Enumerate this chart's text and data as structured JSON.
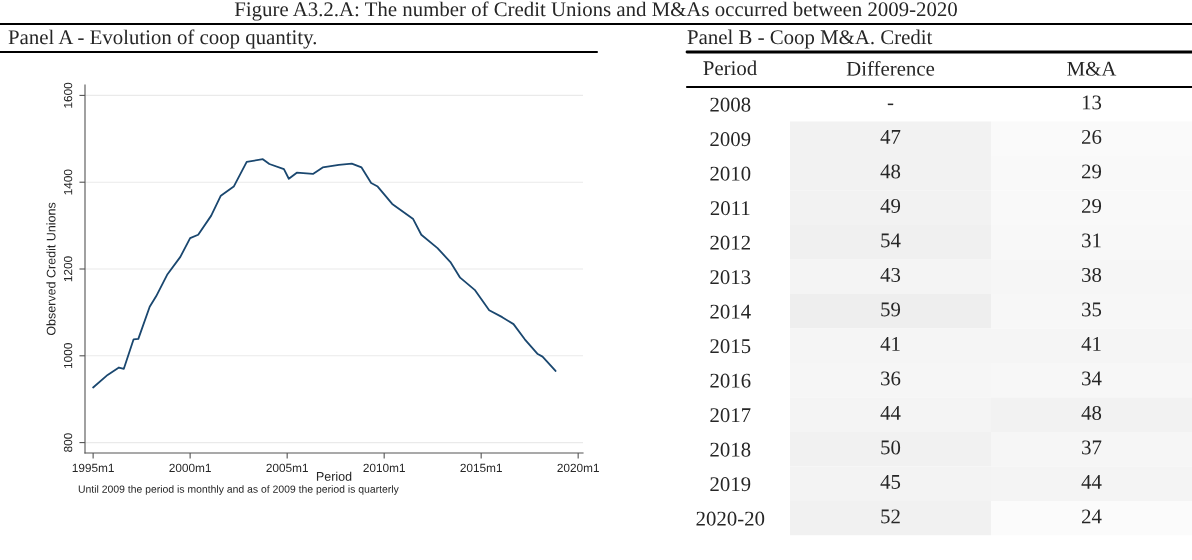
{
  "chart_data": [
    {
      "type": "line",
      "title": "Figure A3.2.A: The number of Credit Unions and M&As occurred between 2009-2020",
      "subtitle": "Panel A - Evolution of coop quantity.",
      "xlabel": "Period",
      "ylabel": "Observed Credit Unions",
      "annotations": [
        "Until 2009 the period is monthly and as of 2009 the period is quarterly"
      ],
      "series": [
        {
          "color": "#1a476f",
          "x": [
            "1995-01",
            "1995-10",
            "1996-05",
            "1996-08",
            "1997-02",
            "1997-05",
            "1997-12",
            "1998-04",
            "1998-11",
            "1999-07",
            "2000-01",
            "2000-06",
            "2001-02",
            "2001-08",
            "2002-04",
            "2002-12",
            "2003-10",
            "2004-02",
            "2004-11",
            "2005-02",
            "2005-07",
            "2006-05",
            "2006-11",
            "2007-09",
            "2008-05",
            "2008-11",
            "2009-05",
            "2009-09",
            "2010-06",
            "2011-07",
            "2011-12",
            "2012-10",
            "2013-06",
            "2013-12",
            "2014-09",
            "2015-06",
            "2016-02",
            "2016-09",
            "2017-04",
            "2017-12",
            "2018-03",
            "2018-11"
          ],
          "values": [
            927,
            956,
            973,
            970,
            1038,
            1039,
            1113,
            1137,
            1188,
            1228,
            1271,
            1279,
            1323,
            1369,
            1390,
            1447,
            1453,
            1442,
            1430,
            1408,
            1422,
            1419,
            1434,
            1440,
            1443,
            1434,
            1398,
            1390,
            1350,
            1315,
            1279,
            1248,
            1216,
            1180,
            1152,
            1105,
            1089,
            1073,
            1038,
            1004,
            998,
            965
          ]
        }
      ],
      "xlim": [
        "1994-08",
        "2020-04"
      ],
      "xticks": [
        {
          "value": "1995-01",
          "label": "1995m1"
        },
        {
          "value": "2000-01",
          "label": "2000m1"
        },
        {
          "value": "2005-01",
          "label": "2005m1"
        },
        {
          "value": "2010-01",
          "label": "2010m1"
        },
        {
          "value": "2015-01",
          "label": "2015m1"
        },
        {
          "value": "2020-01",
          "label": "2020m1"
        }
      ],
      "ylim": [
        776,
        1624
      ],
      "yticks": [
        800,
        1000,
        1200,
        1400,
        1600
      ],
      "grid": "y",
      "marker": "none",
      "line_style": "solid"
    },
    {
      "type": "heatmap",
      "title": "Panel B - Coop M&A. Credit",
      "ylabel": "Period",
      "data_labels": true,
      "categories": [
        "Difference",
        "M&A"
      ],
      "y_categories": [
        "2008",
        "2009",
        "2010",
        "2011",
        "2012",
        "2013",
        "2014",
        "2015",
        "2016",
        "2017",
        "2018",
        "2019",
        "2020-20"
      ],
      "cells": [
        [
          null,
          13
        ],
        [
          47,
          26
        ],
        [
          48,
          29
        ],
        [
          49,
          29
        ],
        [
          54,
          31
        ],
        [
          43,
          38
        ],
        [
          59,
          35
        ],
        [
          41,
          41
        ],
        [
          36,
          34
        ],
        [
          44,
          48
        ],
        [
          50,
          37
        ],
        [
          45,
          44
        ],
        [
          52,
          24
        ]
      ],
      "cell_labels": [
        [
          "-",
          "13"
        ],
        [
          "47",
          "26"
        ],
        [
          "48",
          "29"
        ],
        [
          "49",
          "29"
        ],
        [
          "54",
          "31"
        ],
        [
          "43",
          "38"
        ],
        [
          "59",
          "35"
        ],
        [
          "41",
          "41"
        ],
        [
          "36",
          "34"
        ],
        [
          "44",
          "48"
        ],
        [
          "50",
          "37"
        ],
        [
          "45",
          "44"
        ],
        [
          "52",
          "24"
        ]
      ]
    }
  ]
}
